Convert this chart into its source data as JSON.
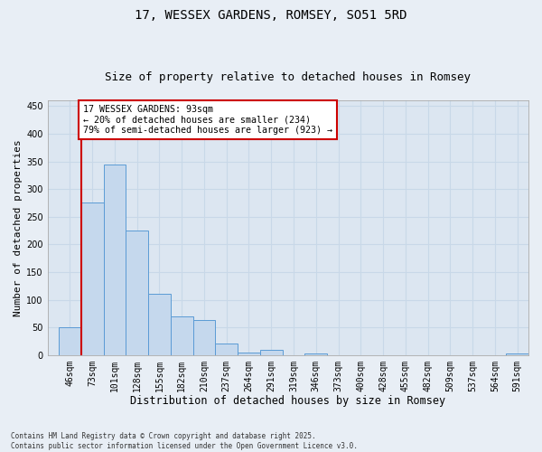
{
  "title1": "17, WESSEX GARDENS, ROMSEY, SO51 5RD",
  "title2": "Size of property relative to detached houses in Romsey",
  "xlabel": "Distribution of detached houses by size in Romsey",
  "ylabel": "Number of detached properties",
  "footer1": "Contains HM Land Registry data © Crown copyright and database right 2025.",
  "footer2": "Contains public sector information licensed under the Open Government Licence v3.0.",
  "categories": [
    "46sqm",
    "73sqm",
    "101sqm",
    "128sqm",
    "155sqm",
    "182sqm",
    "210sqm",
    "237sqm",
    "264sqm",
    "291sqm",
    "319sqm",
    "346sqm",
    "373sqm",
    "400sqm",
    "428sqm",
    "455sqm",
    "482sqm",
    "509sqm",
    "537sqm",
    "564sqm",
    "591sqm"
  ],
  "values": [
    50,
    275,
    345,
    225,
    110,
    70,
    63,
    20,
    5,
    10,
    0,
    2,
    0,
    0,
    0,
    0,
    0,
    0,
    0,
    0,
    2
  ],
  "bar_color": "#c5d8ed",
  "bar_edge_color": "#5b9bd5",
  "annotation_title": "17 WESSEX GARDENS: 93sqm",
  "annotation_line1": "← 20% of detached houses are smaller (234)",
  "annotation_line2": "79% of semi-detached houses are larger (923) →",
  "annotation_box_color": "#ffffff",
  "annotation_box_edge": "#cc0000",
  "vline_color": "#cc0000",
  "vline_x_idx": 1,
  "ylim": [
    0,
    460
  ],
  "yticks": [
    0,
    50,
    100,
    150,
    200,
    250,
    300,
    350,
    400,
    450
  ],
  "bg_color": "#e8eef5",
  "plot_bg_color": "#dce6f1",
  "grid_color": "#c8d8e8",
  "title_fontsize": 10,
  "subtitle_fontsize": 9,
  "tick_fontsize": 7,
  "xlabel_fontsize": 8.5,
  "ylabel_fontsize": 8
}
